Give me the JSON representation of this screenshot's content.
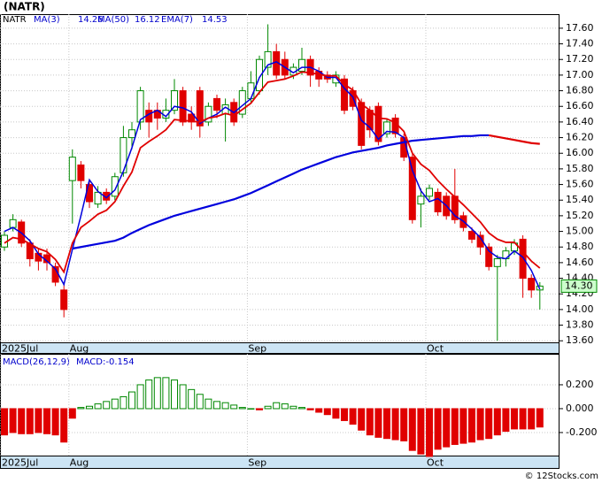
{
  "chart_data": [
    {
      "type": "candlestick",
      "title": "(NATR)",
      "ticker": "NATR",
      "categories": [
        "2025Jul",
        null,
        null,
        null,
        null,
        null,
        null,
        null,
        "Aug",
        null,
        null,
        null,
        null,
        null,
        null,
        null,
        null,
        null,
        null,
        null,
        null,
        null,
        null,
        null,
        null,
        null,
        null,
        null,
        null,
        "Sep",
        null,
        null,
        null,
        null,
        null,
        null,
        null,
        null,
        null,
        null,
        null,
        null,
        null,
        null,
        null,
        null,
        null,
        null,
        null,
        null,
        "Oct",
        null,
        null,
        null,
        null,
        null,
        null,
        null,
        null,
        null,
        null,
        null,
        null,
        null
      ],
      "open": [
        14.8,
        15.05,
        15.12,
        14.85,
        14.72,
        14.7,
        14.55,
        14.25,
        15.65,
        15.85,
        15.6,
        15.35,
        15.5,
        15.45,
        15.75,
        16.2,
        16.4,
        16.55,
        16.55,
        16.45,
        16.55,
        16.8,
        16.5,
        16.8,
        16.4,
        16.7,
        16.5,
        16.65,
        16.5,
        16.7,
        16.8,
        17.1,
        17.3,
        17.2,
        17.0,
        17.05,
        17.2,
        17.05,
        17.0,
        16.9,
        16.95,
        16.8,
        16.65,
        16.55,
        16.6,
        16.25,
        16.45,
        16.2,
        15.95,
        15.35,
        15.45,
        15.5,
        15.45,
        15.45,
        15.2,
        15.0,
        14.95,
        14.8,
        14.55,
        14.65,
        14.75,
        14.9,
        14.4,
        14.25
      ],
      "high": [
        15.0,
        15.22,
        15.15,
        14.9,
        14.78,
        14.78,
        14.6,
        14.35,
        16.05,
        15.9,
        15.65,
        15.58,
        15.55,
        15.75,
        16.35,
        16.4,
        16.85,
        16.65,
        16.65,
        16.7,
        16.95,
        16.85,
        16.6,
        16.85,
        16.65,
        16.75,
        16.7,
        16.7,
        16.85,
        17.05,
        17.25,
        17.65,
        17.4,
        17.3,
        17.15,
        17.35,
        17.25,
        17.1,
        17.05,
        17.05,
        17.0,
        16.85,
        16.7,
        16.6,
        16.65,
        16.45,
        16.5,
        16.25,
        16.0,
        15.55,
        15.6,
        15.55,
        15.5,
        15.8,
        15.25,
        15.05,
        15.0,
        14.85,
        14.7,
        14.8,
        14.9,
        14.95,
        14.45,
        14.35
      ],
      "low": [
        14.75,
        15.0,
        14.8,
        14.55,
        14.5,
        14.5,
        14.3,
        13.9,
        15.1,
        15.55,
        15.3,
        15.3,
        15.35,
        15.4,
        15.7,
        16.05,
        16.3,
        16.2,
        16.3,
        16.4,
        16.5,
        16.35,
        16.3,
        16.2,
        16.35,
        16.45,
        16.15,
        16.35,
        16.45,
        16.65,
        16.75,
        17.0,
        16.95,
        16.95,
        16.95,
        17.0,
        16.85,
        16.85,
        16.9,
        16.85,
        16.5,
        16.55,
        16.05,
        16.2,
        16.1,
        16.2,
        16.2,
        15.9,
        15.1,
        15.05,
        15.4,
        15.2,
        15.15,
        15.1,
        15.0,
        14.85,
        14.7,
        14.5,
        13.6,
        14.55,
        14.7,
        14.15,
        14.15,
        14.0
      ],
      "close": [
        14.95,
        15.15,
        14.85,
        14.65,
        14.62,
        14.6,
        14.35,
        14.0,
        15.95,
        15.65,
        15.38,
        15.5,
        15.4,
        15.7,
        16.2,
        16.3,
        16.8,
        16.4,
        16.45,
        16.55,
        16.8,
        16.4,
        16.4,
        16.35,
        16.6,
        16.55,
        16.62,
        16.4,
        16.8,
        16.9,
        17.2,
        17.3,
        17.0,
        17.0,
        17.1,
        17.2,
        17.0,
        16.95,
        16.95,
        17.0,
        16.55,
        16.6,
        16.1,
        16.3,
        16.15,
        16.4,
        16.25,
        15.95,
        15.15,
        15.45,
        15.55,
        15.25,
        15.2,
        15.15,
        15.05,
        14.9,
        14.8,
        14.55,
        14.65,
        14.75,
        14.85,
        14.4,
        14.25,
        14.3
      ],
      "up_color": "#008800",
      "down_color": "#e00000",
      "series": [
        {
          "name": "MA(3)",
          "color": "#0000dd",
          "width": 1.5,
          "values": [
            15.0,
            15.05,
            14.98,
            14.88,
            14.71,
            14.62,
            14.52,
            14.32,
            14.77,
            15.2,
            15.66,
            15.51,
            15.43,
            15.53,
            15.77,
            16.07,
            16.43,
            16.5,
            16.55,
            16.47,
            16.6,
            16.58,
            16.53,
            16.38,
            16.45,
            16.5,
            16.59,
            16.52,
            16.61,
            16.7,
            16.97,
            17.13,
            17.17,
            17.1,
            17.03,
            17.1,
            17.1,
            17.05,
            16.97,
            16.97,
            16.83,
            16.72,
            16.42,
            16.33,
            16.18,
            16.28,
            16.27,
            16.2,
            15.78,
            15.52,
            15.38,
            15.42,
            15.33,
            15.2,
            15.13,
            15.03,
            14.92,
            14.75,
            14.67,
            14.65,
            14.75,
            14.67,
            14.5,
            14.26
          ]
        },
        {
          "name": "MA(50)",
          "color": "#0000dd",
          "falling_color": "#e00000",
          "width": 2.2,
          "values": [
            null,
            null,
            null,
            null,
            null,
            null,
            null,
            null,
            14.78,
            14.8,
            14.82,
            14.84,
            14.86,
            14.88,
            14.92,
            14.98,
            15.03,
            15.08,
            15.12,
            15.16,
            15.2,
            15.23,
            15.26,
            15.29,
            15.32,
            15.35,
            15.38,
            15.41,
            15.45,
            15.49,
            15.54,
            15.59,
            15.64,
            15.69,
            15.74,
            15.79,
            15.83,
            15.87,
            15.91,
            15.95,
            15.98,
            16.01,
            16.03,
            16.05,
            16.07,
            16.1,
            16.12,
            16.14,
            16.16,
            16.17,
            16.18,
            16.19,
            16.2,
            16.21,
            16.22,
            16.22,
            16.23,
            16.23,
            16.21,
            16.19,
            16.17,
            16.15,
            16.13,
            16.12
          ]
        },
        {
          "name": "EMA(7)",
          "color": "#e00000",
          "width": 1.8,
          "values": [
            14.85,
            14.92,
            14.9,
            14.84,
            14.78,
            14.74,
            14.64,
            14.48,
            14.85,
            15.05,
            15.13,
            15.22,
            15.27,
            15.38,
            15.58,
            15.76,
            16.07,
            16.15,
            16.22,
            16.3,
            16.43,
            16.42,
            16.41,
            16.4,
            16.45,
            16.47,
            16.51,
            16.48,
            16.56,
            16.64,
            16.78,
            16.91,
            16.93,
            16.95,
            16.99,
            17.04,
            17.03,
            17.01,
            16.99,
            16.99,
            16.88,
            16.81,
            16.63,
            16.55,
            16.45,
            16.44,
            16.39,
            16.28,
            16.0,
            15.86,
            15.78,
            15.65,
            15.54,
            15.44,
            15.34,
            15.23,
            15.12,
            14.98,
            14.9,
            14.86,
            14.86,
            14.74,
            14.62,
            14.53
          ]
        }
      ],
      "last_price": {
        "value": 14.3,
        "label": "14.30"
      },
      "ylim": [
        13.58,
        17.78
      ],
      "yticks": [
        {
          "value": 13.6,
          "label": "13.60"
        },
        {
          "value": 13.8,
          "label": "13.80"
        },
        {
          "value": 14.0,
          "label": "14.00"
        },
        {
          "value": 14.2,
          "label": "14.20"
        },
        {
          "value": 14.4,
          "label": "14.40"
        },
        {
          "value": 14.6,
          "label": "14.60"
        },
        {
          "value": 14.8,
          "label": "14.80"
        },
        {
          "value": 15.0,
          "label": "15.00"
        },
        {
          "value": 15.2,
          "label": "15.20"
        },
        {
          "value": 15.4,
          "label": "15.40"
        },
        {
          "value": 15.6,
          "label": "15.60"
        },
        {
          "value": 15.8,
          "label": "15.80"
        },
        {
          "value": 16.0,
          "label": "16.00"
        },
        {
          "value": 16.2,
          "label": "16.20"
        },
        {
          "value": 16.4,
          "label": "16.40"
        },
        {
          "value": 16.6,
          "label": "16.60"
        },
        {
          "value": 16.8,
          "label": "16.80"
        },
        {
          "value": 17.0,
          "label": "17.00"
        },
        {
          "value": 17.2,
          "label": "17.20"
        },
        {
          "value": 17.4,
          "label": "17.40"
        },
        {
          "value": 17.6,
          "label": "17.60"
        }
      ],
      "grid": true
    },
    {
      "type": "bar",
      "label": "MACD(26,12,9)",
      "value_label": "MACD:-0.154",
      "categories": [
        "2025Jul",
        null,
        null,
        null,
        null,
        null,
        null,
        null,
        "Aug",
        null,
        null,
        null,
        null,
        null,
        null,
        null,
        null,
        null,
        null,
        null,
        null,
        null,
        null,
        null,
        null,
        null,
        null,
        null,
        null,
        "Sep",
        null,
        null,
        null,
        null,
        null,
        null,
        null,
        null,
        null,
        null,
        null,
        null,
        null,
        null,
        null,
        null,
        null,
        null,
        null,
        null,
        "Oct",
        null,
        null,
        null,
        null,
        null,
        null,
        null,
        null,
        null,
        null,
        null,
        null,
        null
      ],
      "values": [
        -0.22,
        -0.2,
        -0.21,
        -0.21,
        -0.2,
        -0.21,
        -0.22,
        -0.28,
        -0.08,
        0.01,
        0.02,
        0.04,
        0.06,
        0.08,
        0.1,
        0.14,
        0.2,
        0.24,
        0.26,
        0.26,
        0.24,
        0.2,
        0.16,
        0.12,
        0.08,
        0.06,
        0.05,
        0.03,
        0.01,
        0.0,
        -0.01,
        0.02,
        0.05,
        0.04,
        0.02,
        0.01,
        -0.01,
        -0.03,
        -0.05,
        -0.08,
        -0.1,
        -0.13,
        -0.18,
        -0.22,
        -0.24,
        -0.25,
        -0.26,
        -0.27,
        -0.35,
        -0.38,
        -0.4,
        -0.34,
        -0.32,
        -0.3,
        -0.29,
        -0.28,
        -0.26,
        -0.25,
        -0.22,
        -0.19,
        -0.17,
        -0.17,
        -0.17,
        -0.154
      ],
      "up_color": "#008800",
      "down_color": "#e00000",
      "ylim": [
        -0.393,
        0.459
      ],
      "yticks": [
        {
          "value": -0.2,
          "label": "-0.200"
        },
        {
          "value": 0,
          "label": "0.000"
        },
        {
          "value": 0.2,
          "label": "0.200"
        }
      ],
      "grid": true
    }
  ],
  "footer": "© 12Stocks.com"
}
